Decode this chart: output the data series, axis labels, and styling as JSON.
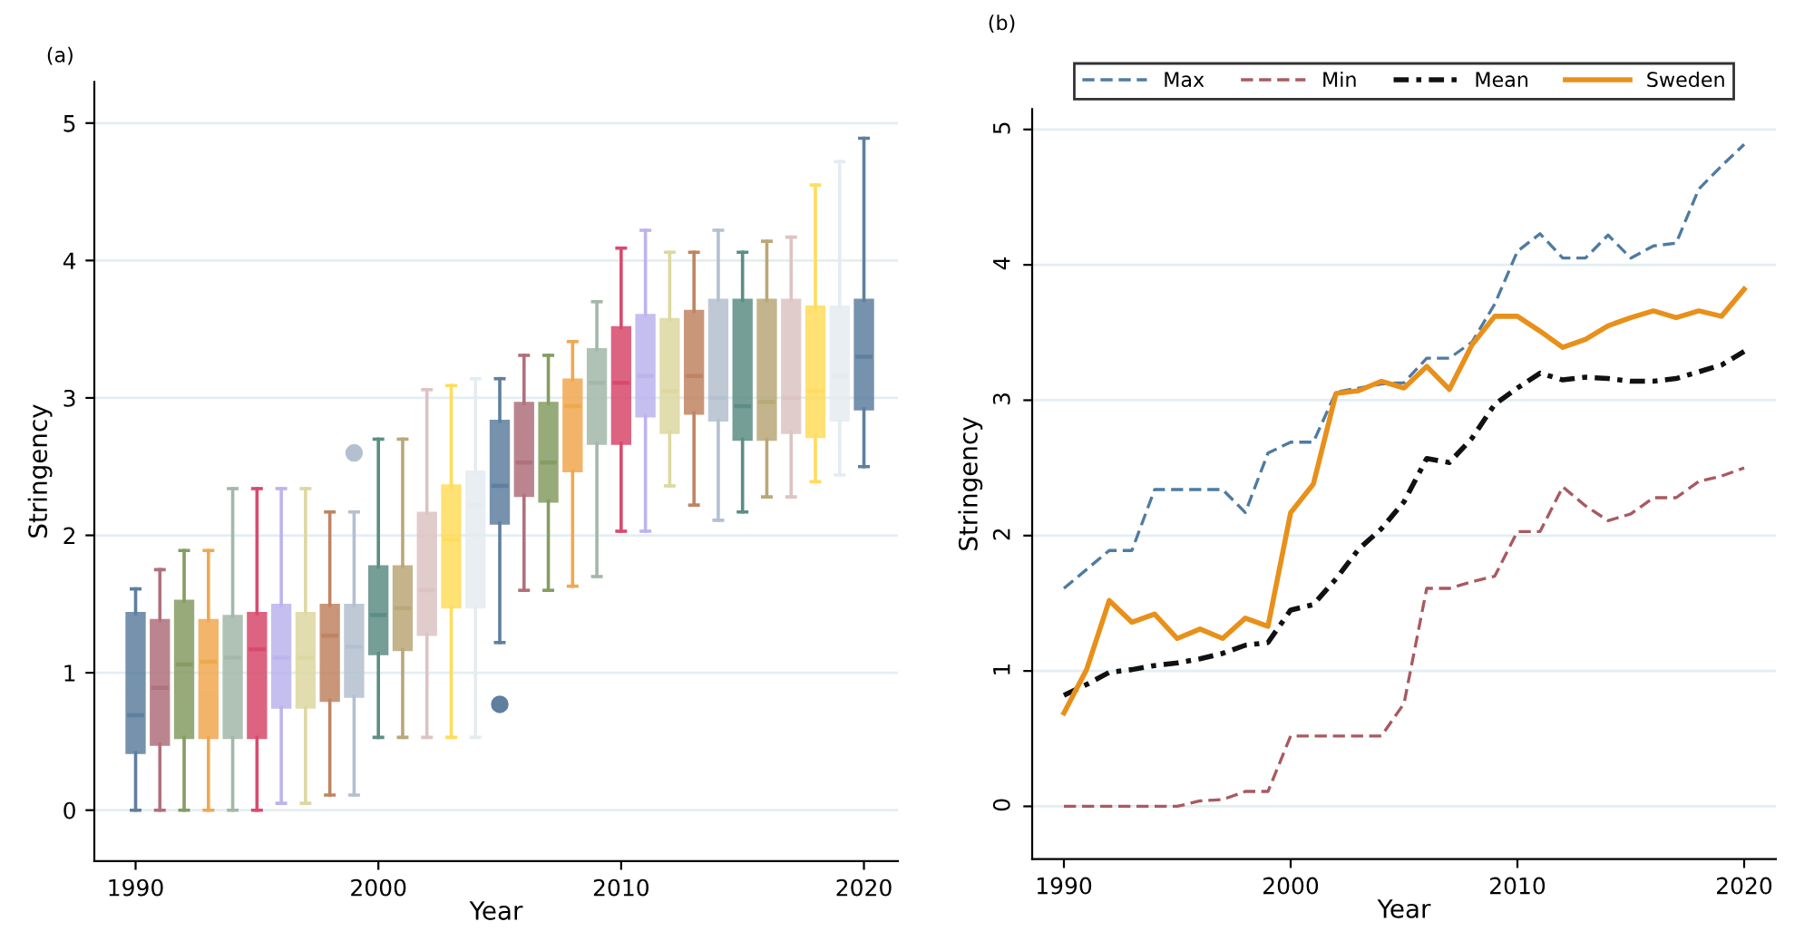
{
  "chart_data": [
    {
      "type": "box",
      "xlabel": "Year",
      "ylabel": "Stringency",
      "annotations": [
        "(a)"
      ],
      "x": [
        1990,
        1991,
        1992,
        1993,
        1994,
        1995,
        1996,
        1997,
        1998,
        1999,
        2000,
        2001,
        2002,
        2003,
        2004,
        2005,
        2006,
        2007,
        2008,
        2009,
        2010,
        2011,
        2012,
        2013,
        2014,
        2015,
        2016,
        2017,
        2018,
        2019,
        2020
      ],
      "colors": [
        "#5f7f9f",
        "#b0707c",
        "#869c62",
        "#f0a850",
        "#a3b8aa",
        "#d84a6c",
        "#bcb4ee",
        "#ddd8a0",
        "#c08462",
        "#b4c0d0",
        "#5c8e84",
        "#b9a878",
        "#dcc4c4",
        "#ffdc5c",
        "#e4ecf0",
        "#5f7f9f",
        "#b0707c",
        "#869c62",
        "#f0a850",
        "#a3b8aa",
        "#d84a6c",
        "#bcb4ee",
        "#ddd8a0",
        "#c08462",
        "#b4c0d0",
        "#5c8e84",
        "#b9a878",
        "#dcc4c4",
        "#ffdc5c",
        "#e4ecf0",
        "#5f7f9f"
      ],
      "boxes": [
        {
          "low": 0,
          "q1": 0.42,
          "median": 0.69,
          "q3": 1.43,
          "high": 1.61
        },
        {
          "low": 0,
          "q1": 0.48,
          "median": 0.89,
          "q3": 1.38,
          "high": 1.75
        },
        {
          "low": 0,
          "q1": 0.53,
          "median": 1.06,
          "q3": 1.52,
          "high": 1.89
        },
        {
          "low": 0,
          "q1": 0.53,
          "median": 1.08,
          "q3": 1.38,
          "high": 1.89
        },
        {
          "low": 0,
          "q1": 0.53,
          "median": 1.11,
          "q3": 1.41,
          "high": 2.34
        },
        {
          "low": 0,
          "q1": 0.53,
          "median": 1.17,
          "q3": 1.43,
          "high": 2.34
        },
        {
          "low": 0.05,
          "q1": 0.75,
          "median": 1.11,
          "q3": 1.49,
          "high": 2.34
        },
        {
          "low": 0.05,
          "q1": 0.75,
          "median": 1.11,
          "q3": 1.43,
          "high": 2.34
        },
        {
          "low": 0.11,
          "q1": 0.8,
          "median": 1.27,
          "q3": 1.49,
          "high": 2.17
        },
        {
          "low": 0.11,
          "q1": 0.83,
          "median": 1.19,
          "q3": 1.49,
          "high": 2.17,
          "outliers": [
            2.6
          ]
        },
        {
          "low": 0.53,
          "q1": 1.14,
          "median": 1.42,
          "q3": 1.77,
          "high": 2.7
        },
        {
          "low": 0.53,
          "q1": 1.17,
          "median": 1.47,
          "q3": 1.77,
          "high": 2.7
        },
        {
          "low": 0.53,
          "q1": 1.28,
          "median": 1.6,
          "q3": 2.16,
          "high": 3.06
        },
        {
          "low": 0.53,
          "q1": 1.48,
          "median": 1.97,
          "q3": 2.36,
          "high": 3.09
        },
        {
          "low": 0.53,
          "q1": 1.48,
          "median": 2.22,
          "q3": 2.46,
          "high": 3.14
        },
        {
          "low": 1.22,
          "q1": 2.09,
          "median": 2.36,
          "q3": 2.83,
          "high": 3.14,
          "outliers": [
            0.77
          ]
        },
        {
          "low": 1.6,
          "q1": 2.29,
          "median": 2.53,
          "q3": 2.96,
          "high": 3.31
        },
        {
          "low": 1.6,
          "q1": 2.25,
          "median": 2.53,
          "q3": 2.96,
          "high": 3.31
        },
        {
          "low": 1.63,
          "q1": 2.47,
          "median": 2.94,
          "q3": 3.13,
          "high": 3.41
        },
        {
          "low": 1.7,
          "q1": 2.67,
          "median": 3.11,
          "q3": 3.35,
          "high": 3.7
        },
        {
          "low": 2.03,
          "q1": 2.67,
          "median": 3.11,
          "q3": 3.51,
          "high": 4.09
        },
        {
          "low": 2.03,
          "q1": 2.87,
          "median": 3.16,
          "q3": 3.6,
          "high": 4.22
        },
        {
          "low": 2.36,
          "q1": 2.75,
          "median": 3.05,
          "q3": 3.57,
          "high": 4.06
        },
        {
          "low": 2.22,
          "q1": 2.89,
          "median": 3.16,
          "q3": 3.63,
          "high": 4.06
        },
        {
          "low": 2.11,
          "q1": 2.84,
          "median": 3.0,
          "q3": 3.71,
          "high": 4.22
        },
        {
          "low": 2.17,
          "q1": 2.7,
          "median": 2.94,
          "q3": 3.71,
          "high": 4.06
        },
        {
          "low": 2.28,
          "q1": 2.7,
          "median": 2.97,
          "q3": 3.71,
          "high": 4.14
        },
        {
          "low": 2.28,
          "q1": 2.75,
          "median": 3.0,
          "q3": 3.71,
          "high": 4.17
        },
        {
          "low": 2.39,
          "q1": 2.72,
          "median": 3.05,
          "q3": 3.66,
          "high": 4.55
        },
        {
          "low": 2.44,
          "q1": 2.84,
          "median": 3.16,
          "q3": 3.66,
          "high": 4.72
        },
        {
          "low": 2.5,
          "q1": 2.92,
          "median": 3.3,
          "q3": 3.71,
          "high": 4.89
        }
      ],
      "xlim": [
        1988.3,
        2021.4
      ],
      "xticks": [
        1990,
        2000,
        2010,
        2020
      ],
      "ylim": [
        -0.37,
        5.3
      ],
      "yticks": [
        0,
        1,
        2,
        3,
        4,
        5
      ],
      "grid": "y"
    },
    {
      "type": "line",
      "xlabel": "Year",
      "ylabel": "Stringency",
      "annotations": [
        "(b)"
      ],
      "x": [
        1990,
        1991,
        1992,
        1993,
        1994,
        1995,
        1996,
        1997,
        1998,
        1999,
        2000,
        2001,
        2002,
        2003,
        2004,
        2005,
        2006,
        2007,
        2008,
        2009,
        2010,
        2011,
        2012,
        2013,
        2014,
        2015,
        2016,
        2017,
        2018,
        2019,
        2020
      ],
      "series": [
        {
          "name": "Max",
          "color": "#4f7ba0",
          "line_style": "dashed",
          "values": [
            1.61,
            1.75,
            1.89,
            1.89,
            2.34,
            2.34,
            2.34,
            2.34,
            2.17,
            2.61,
            2.69,
            2.69,
            3.06,
            3.09,
            3.12,
            3.13,
            3.31,
            3.31,
            3.43,
            3.71,
            4.1,
            4.23,
            4.05,
            4.05,
            4.22,
            4.05,
            4.14,
            4.16,
            4.56,
            4.73,
            4.89
          ]
        },
        {
          "name": "Min",
          "color": "#a85a60",
          "line_style": "dashed",
          "values": [
            0,
            0,
            0,
            0,
            0,
            0,
            0.04,
            0.05,
            0.11,
            0.11,
            0.52,
            0.52,
            0.52,
            0.52,
            0.52,
            0.76,
            1.61,
            1.61,
            1.66,
            1.7,
            2.03,
            2.03,
            2.36,
            2.22,
            2.11,
            2.16,
            2.28,
            2.28,
            2.4,
            2.44,
            2.5
          ]
        },
        {
          "name": "Mean",
          "color": "#111111",
          "line_style": "dashdot",
          "values": [
            0.82,
            0.9,
            0.99,
            1.01,
            1.04,
            1.06,
            1.09,
            1.13,
            1.19,
            1.21,
            1.45,
            1.49,
            1.68,
            1.9,
            2.05,
            2.25,
            2.57,
            2.54,
            2.72,
            2.97,
            3.09,
            3.2,
            3.15,
            3.17,
            3.16,
            3.14,
            3.14,
            3.16,
            3.21,
            3.26,
            3.36
          ]
        },
        {
          "name": "Sweden",
          "color": "#e8901a",
          "line_style": "solid",
          "values": [
            0.69,
            1.01,
            1.52,
            1.36,
            1.42,
            1.24,
            1.31,
            1.24,
            1.39,
            1.33,
            2.17,
            2.38,
            3.05,
            3.07,
            3.14,
            3.09,
            3.25,
            3.08,
            3.41,
            3.62,
            3.62,
            3.51,
            3.39,
            3.45,
            3.55,
            3.61,
            3.66,
            3.61,
            3.66,
            3.62,
            3.82
          ]
        }
      ],
      "xlim": [
        1988.6,
        2021.4
      ],
      "xticks": [
        1990,
        2000,
        2010,
        2020
      ],
      "ylim": [
        -0.39,
        5.15
      ],
      "yticks": [
        0,
        1,
        2,
        3,
        4,
        5
      ],
      "grid": "y",
      "legend": "top",
      "marker": "none"
    }
  ]
}
